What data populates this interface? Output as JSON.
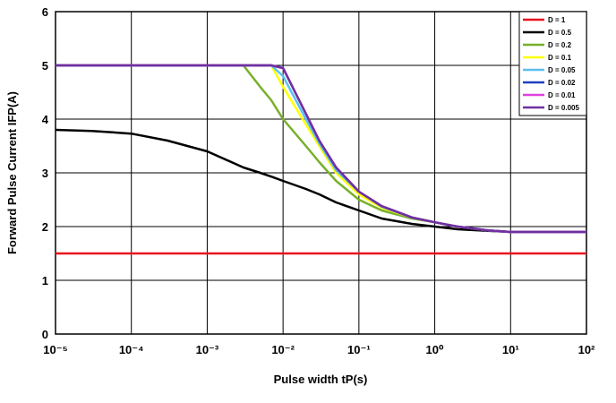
{
  "chart_data": {
    "type": "line",
    "xlabel": "Pulse width tP(s)",
    "ylabel": "Forward Pulse Current IFP(A)",
    "log_x": true,
    "grid": true,
    "legend": "upper right",
    "xlim": [
      1e-05,
      100
    ],
    "ylim": [
      0,
      6
    ],
    "xticks": [
      {
        "value": 1e-05,
        "label": "10⁻⁵"
      },
      {
        "value": 0.0001,
        "label": "10⁻⁴"
      },
      {
        "value": 0.001,
        "label": "10⁻³"
      },
      {
        "value": 0.01,
        "label": "10⁻²"
      },
      {
        "value": 0.1,
        "label": "10⁻¹"
      },
      {
        "value": 1,
        "label": "10⁰"
      },
      {
        "value": 10,
        "label": "10¹"
      },
      {
        "value": 100,
        "label": "10²"
      }
    ],
    "yticks": [
      0,
      1,
      2,
      3,
      4,
      5,
      6
    ],
    "x": [
      1e-05,
      3e-05,
      0.0001,
      0.0003,
      0.001,
      0.003,
      0.005,
      0.007,
      0.01,
      0.02,
      0.03,
      0.05,
      0.1,
      0.2,
      0.5,
      1,
      2,
      5,
      10,
      100
    ],
    "series": [
      {
        "name": "D = 1",
        "color": "#e8141c",
        "values": [
          1.5,
          1.5,
          1.5,
          1.5,
          1.5,
          1.5,
          1.5,
          1.5,
          1.5,
          1.5,
          1.5,
          1.5,
          1.5,
          1.5,
          1.5,
          1.5,
          1.5,
          1.5,
          1.5,
          1.5
        ]
      },
      {
        "name": "D = 0.5",
        "color": "#000000",
        "values": [
          3.8,
          3.78,
          3.73,
          3.6,
          3.4,
          3.1,
          3.0,
          2.93,
          2.85,
          2.7,
          2.6,
          2.45,
          2.3,
          2.15,
          2.05,
          2.0,
          1.95,
          1.92,
          1.9,
          1.9
        ]
      },
      {
        "name": "D = 0.2",
        "color": "#77b02a",
        "values": [
          5,
          5,
          5,
          5,
          5,
          5,
          4.6,
          4.35,
          4.0,
          3.5,
          3.2,
          2.85,
          2.5,
          2.3,
          2.15,
          2.08,
          2.0,
          1.93,
          1.9,
          1.9
        ]
      },
      {
        "name": "D = 0.1",
        "color": "#ffff00",
        "values": [
          5,
          5,
          5,
          5,
          5,
          5,
          5,
          5,
          4.6,
          3.9,
          3.5,
          3.0,
          2.6,
          2.35,
          2.17,
          2.08,
          2.0,
          1.93,
          1.9,
          1.9
        ]
      },
      {
        "name": "D = 0.05",
        "color": "#5bc0f0",
        "values": [
          5,
          5,
          5,
          5,
          5,
          5,
          5,
          5,
          4.8,
          4.0,
          3.55,
          3.05,
          2.65,
          2.37,
          2.17,
          2.08,
          2.0,
          1.93,
          1.9,
          1.9
        ]
      },
      {
        "name": "D = 0.02",
        "color": "#1f3fbf",
        "values": [
          5,
          5,
          5,
          5,
          5,
          5,
          5,
          5,
          4.95,
          4.1,
          3.6,
          3.1,
          2.65,
          2.38,
          2.17,
          2.08,
          2.0,
          1.93,
          1.9,
          1.9
        ]
      },
      {
        "name": "D = 0.01",
        "color": "#e040e0",
        "values": [
          5,
          5,
          5,
          5,
          5,
          5,
          5,
          5,
          4.95,
          4.1,
          3.6,
          3.1,
          2.65,
          2.38,
          2.17,
          2.08,
          2.0,
          1.93,
          1.9,
          1.9
        ]
      },
      {
        "name": "D = 0.005",
        "color": "#7030a0",
        "values": [
          5,
          5,
          5,
          5,
          5,
          5,
          5,
          5,
          4.95,
          4.1,
          3.6,
          3.1,
          2.65,
          2.38,
          2.17,
          2.08,
          2.0,
          1.93,
          1.9,
          1.9
        ]
      }
    ]
  }
}
